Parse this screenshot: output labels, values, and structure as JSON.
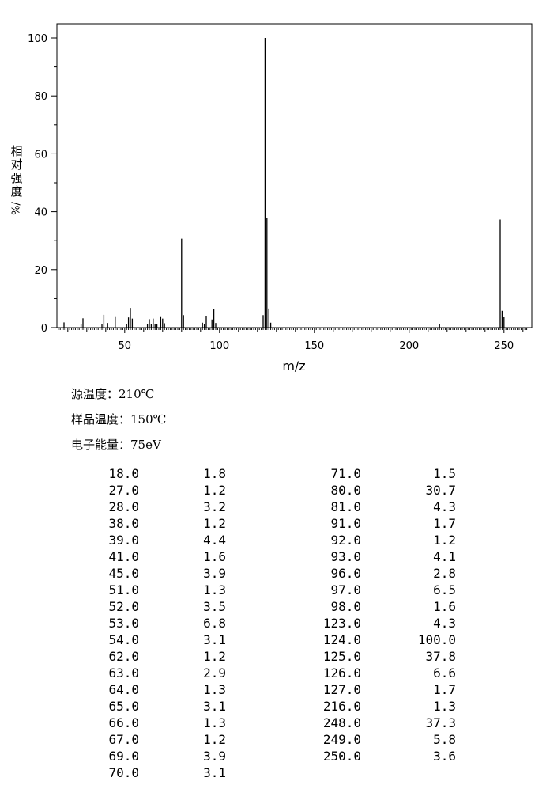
{
  "chart_data": {
    "type": "bar",
    "xlabel": "m/z",
    "ylabel": [
      "相",
      "对",
      "强",
      "度",
      "%/"
    ],
    "xlim": [
      10,
      262
    ],
    "ylim": [
      0,
      105
    ],
    "xticks": [
      50,
      100,
      150,
      200,
      250
    ],
    "yticks": [
      0,
      20,
      40,
      60,
      80,
      100
    ],
    "peaks": [
      {
        "mz": 18.0,
        "intensity": 1.8
      },
      {
        "mz": 27.0,
        "intensity": 1.2
      },
      {
        "mz": 28.0,
        "intensity": 3.2
      },
      {
        "mz": 38.0,
        "intensity": 1.2
      },
      {
        "mz": 39.0,
        "intensity": 4.4
      },
      {
        "mz": 41.0,
        "intensity": 1.6
      },
      {
        "mz": 45.0,
        "intensity": 3.9
      },
      {
        "mz": 51.0,
        "intensity": 1.3
      },
      {
        "mz": 52.0,
        "intensity": 3.5
      },
      {
        "mz": 53.0,
        "intensity": 6.8
      },
      {
        "mz": 54.0,
        "intensity": 3.1
      },
      {
        "mz": 62.0,
        "intensity": 1.2
      },
      {
        "mz": 63.0,
        "intensity": 2.9
      },
      {
        "mz": 64.0,
        "intensity": 1.3
      },
      {
        "mz": 65.0,
        "intensity": 3.1
      },
      {
        "mz": 66.0,
        "intensity": 1.3
      },
      {
        "mz": 67.0,
        "intensity": 1.2
      },
      {
        "mz": 69.0,
        "intensity": 3.9
      },
      {
        "mz": 70.0,
        "intensity": 3.1
      },
      {
        "mz": 71.0,
        "intensity": 1.5
      },
      {
        "mz": 80.0,
        "intensity": 30.7
      },
      {
        "mz": 81.0,
        "intensity": 4.3
      },
      {
        "mz": 91.0,
        "intensity": 1.7
      },
      {
        "mz": 92.0,
        "intensity": 1.2
      },
      {
        "mz": 93.0,
        "intensity": 4.1
      },
      {
        "mz": 96.0,
        "intensity": 2.8
      },
      {
        "mz": 97.0,
        "intensity": 6.5
      },
      {
        "mz": 98.0,
        "intensity": 1.6
      },
      {
        "mz": 123.0,
        "intensity": 4.3
      },
      {
        "mz": 124.0,
        "intensity": 100.0
      },
      {
        "mz": 125.0,
        "intensity": 37.8
      },
      {
        "mz": 126.0,
        "intensity": 6.6
      },
      {
        "mz": 127.0,
        "intensity": 1.7
      },
      {
        "mz": 216.0,
        "intensity": 1.3
      },
      {
        "mz": 248.0,
        "intensity": 37.3
      },
      {
        "mz": 249.0,
        "intensity": 5.8
      },
      {
        "mz": 250.0,
        "intensity": 3.6
      }
    ]
  },
  "conditions": {
    "source_temp": "源温度：210℃",
    "sample_temp": "样品温度：150℃",
    "electron_energy": "电子能量：75eV"
  },
  "table": {
    "left": [
      [
        "18.0",
        "1.8"
      ],
      [
        "27.0",
        "1.2"
      ],
      [
        "28.0",
        "3.2"
      ],
      [
        "38.0",
        "1.2"
      ],
      [
        "39.0",
        "4.4"
      ],
      [
        "41.0",
        "1.6"
      ],
      [
        "45.0",
        "3.9"
      ],
      [
        "51.0",
        "1.3"
      ],
      [
        "52.0",
        "3.5"
      ],
      [
        "53.0",
        "6.8"
      ],
      [
        "54.0",
        "3.1"
      ],
      [
        "62.0",
        "1.2"
      ],
      [
        "63.0",
        "2.9"
      ],
      [
        "64.0",
        "1.3"
      ],
      [
        "65.0",
        "3.1"
      ],
      [
        "66.0",
        "1.3"
      ],
      [
        "67.0",
        "1.2"
      ],
      [
        "69.0",
        "3.9"
      ],
      [
        "70.0",
        "3.1"
      ]
    ],
    "right": [
      [
        "71.0",
        "1.5"
      ],
      [
        "80.0",
        "30.7"
      ],
      [
        "81.0",
        "4.3"
      ],
      [
        "91.0",
        "1.7"
      ],
      [
        "92.0",
        "1.2"
      ],
      [
        "93.0",
        "4.1"
      ],
      [
        "96.0",
        "2.8"
      ],
      [
        "97.0",
        "6.5"
      ],
      [
        "98.0",
        "1.6"
      ],
      [
        "123.0",
        "4.3"
      ],
      [
        "124.0",
        "100.0"
      ],
      [
        "125.0",
        "37.8"
      ],
      [
        "126.0",
        "6.6"
      ],
      [
        "127.0",
        "1.7"
      ],
      [
        "216.0",
        "1.3"
      ],
      [
        "248.0",
        "37.3"
      ],
      [
        "249.0",
        "5.8"
      ],
      [
        "250.0",
        "3.6"
      ]
    ]
  }
}
